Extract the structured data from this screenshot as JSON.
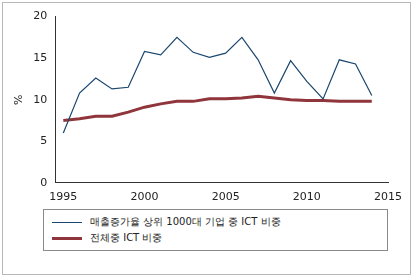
{
  "chart_data": {
    "type": "line",
    "x": [
      1995,
      1996,
      1997,
      1998,
      1999,
      2000,
      2001,
      2002,
      2003,
      2004,
      2005,
      2006,
      2007,
      2008,
      2009,
      2010,
      2011,
      2012,
      2013,
      2014
    ],
    "series": [
      {
        "name": "매출증가율 상위 1000대 기업 중 ICT 비중",
        "color": "#1a476f",
        "values": [
          6.0,
          10.8,
          12.6,
          11.3,
          11.5,
          15.8,
          15.4,
          17.5,
          15.7,
          15.1,
          15.6,
          17.5,
          14.8,
          10.8,
          14.7,
          12.2,
          10.1,
          14.8,
          14.3,
          10.5
        ]
      },
      {
        "name": "전체중 ICT 비중",
        "color": "#90353b",
        "values": [
          7.5,
          7.7,
          8.0,
          8.0,
          8.5,
          9.1,
          9.5,
          9.8,
          9.8,
          10.1,
          10.1,
          10.2,
          10.4,
          10.2,
          10.0,
          9.9,
          9.9,
          9.8,
          9.8,
          9.8
        ]
      }
    ],
    "y_label": "%",
    "xlim": [
      1994.5,
      2015
    ],
    "xticks": [
      1995,
      2000,
      2005,
      2010,
      2015
    ],
    "ylim": [
      0,
      20
    ],
    "yticks": [
      0,
      5,
      10,
      15,
      20
    ],
    "grid": false,
    "legend": "bottom"
  }
}
